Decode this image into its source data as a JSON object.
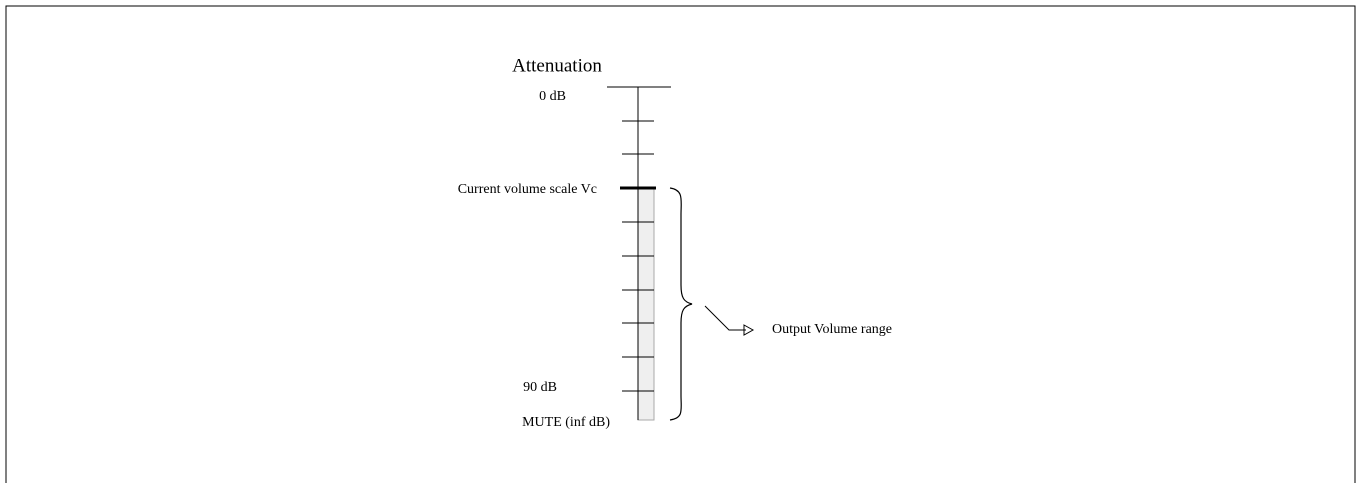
{
  "title": "Attenuation",
  "labels": {
    "top": "0 dB",
    "current": "Current volume scale Vc",
    "bottom": "90 dB",
    "mute": "MUTE (inf dB)"
  },
  "range_label": "Output Volume range"
}
